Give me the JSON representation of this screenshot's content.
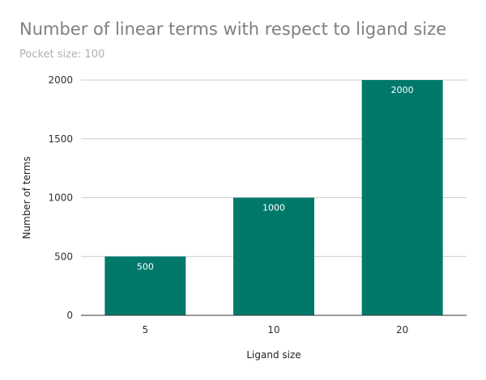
{
  "chart_data": {
    "type": "bar",
    "title": "Number of linear terms with respect to ligand size",
    "subtitle": "Pocket size: 100",
    "xlabel": "Ligand size",
    "ylabel": "Number of terms",
    "categories": [
      "5",
      "10",
      "20"
    ],
    "values": [
      500,
      1000,
      2000
    ],
    "ylim": [
      0,
      2000
    ],
    "yticks": [
      0,
      500,
      1000,
      1500,
      2000
    ],
    "grid": true,
    "legend": "none",
    "bar_color": "#00796b",
    "data_labels": true
  }
}
